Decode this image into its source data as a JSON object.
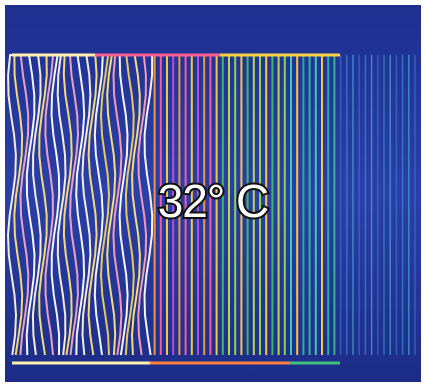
{
  "label": "32° C"
}
